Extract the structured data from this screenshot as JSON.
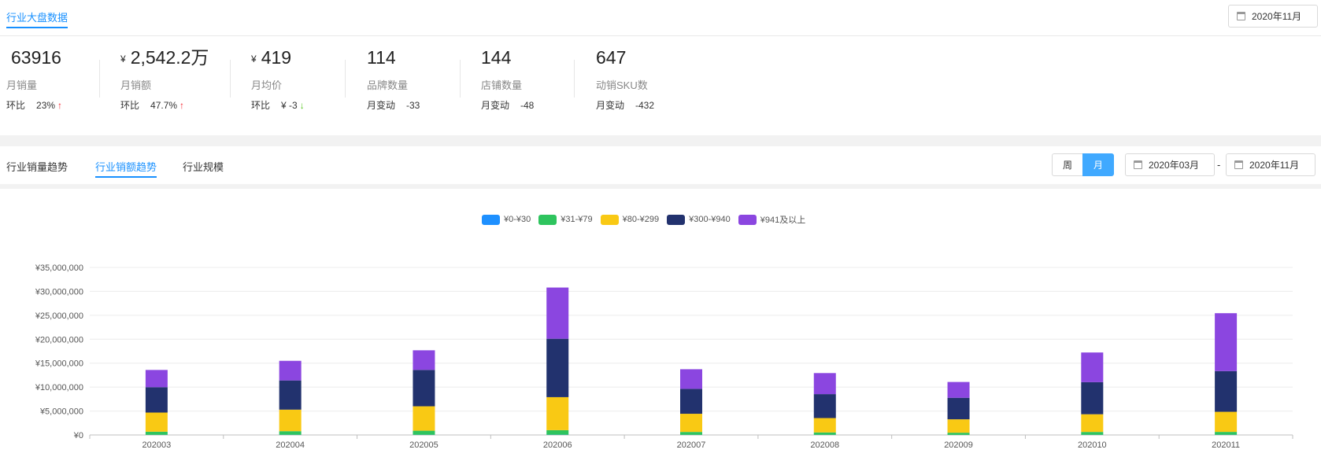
{
  "header": {
    "title": "行业大盘数据",
    "date": "2020年11月"
  },
  "metrics": [
    {
      "value": "63916",
      "currency": "",
      "label": "月销量",
      "delta_label": "环比",
      "delta_value": "23%",
      "arrow": "↑"
    },
    {
      "value": "2,542.2万",
      "currency": "¥",
      "label": "月销额",
      "delta_label": "环比",
      "delta_value": "47.7%",
      "arrow": "↑"
    },
    {
      "value": "419",
      "currency": "¥",
      "label": "月均价",
      "delta_label": "环比",
      "delta_value": "¥ -3",
      "arrow": "↓"
    },
    {
      "value": "114",
      "currency": "",
      "label": "品牌数量",
      "delta_label": "月变动",
      "delta_value": "-33",
      "arrow": ""
    },
    {
      "value": "144",
      "currency": "",
      "label": "店铺数量",
      "delta_label": "月变动",
      "delta_value": "-48",
      "arrow": ""
    },
    {
      "value": "647",
      "currency": "",
      "label": "动销SKU数",
      "delta_label": "月变动",
      "delta_value": "-432",
      "arrow": ""
    }
  ],
  "tabs": [
    {
      "label": "行业销量趋势",
      "active": false
    },
    {
      "label": "行业销额趋势",
      "active": true
    },
    {
      "label": "行业规模",
      "active": false
    }
  ],
  "period_toggle": {
    "week": "周",
    "month": "月",
    "selected": "月"
  },
  "range": {
    "start": "2020年03月",
    "separator": "-",
    "end": "2020年11月"
  },
  "colors": {
    "accent": "#1890ff",
    "up": "#f5222d",
    "down": "#52c41a"
  },
  "chart_data": {
    "type": "bar",
    "stacked": true,
    "legend_position": "top-center",
    "categories": [
      "202003",
      "202004",
      "202005",
      "202006",
      "202007",
      "202008",
      "202009",
      "202010",
      "202011"
    ],
    "ylim": [
      0,
      35000000
    ],
    "yticks": [
      0,
      5000000,
      10000000,
      15000000,
      20000000,
      25000000,
      30000000,
      35000000
    ],
    "ytick_labels": [
      "¥0",
      "¥5,000,000",
      "¥10,000,000",
      "¥15,000,000",
      "¥20,000,000",
      "¥25,000,000",
      "¥30,000,000",
      "¥35,000,000"
    ],
    "series": [
      {
        "name": "¥0-¥30",
        "color": "#1e90ff",
        "values": [
          30000,
          40000,
          40000,
          50000,
          30000,
          30000,
          20000,
          30000,
          40000
        ]
      },
      {
        "name": "¥31-¥79",
        "color": "#2ec45e",
        "values": [
          650000,
          750000,
          850000,
          950000,
          600000,
          500000,
          450000,
          600000,
          600000
        ]
      },
      {
        "name": "¥80-¥299",
        "color": "#f9c914",
        "values": [
          4000000,
          4500000,
          5100000,
          6900000,
          3800000,
          3000000,
          2800000,
          3700000,
          4200000
        ]
      },
      {
        "name": "¥300-¥940",
        "color": "#22326e",
        "values": [
          5300000,
          6100000,
          7600000,
          12200000,
          5200000,
          5000000,
          4500000,
          6700000,
          8500000
        ]
      },
      {
        "name": "¥941及以上",
        "color": "#8b46e0",
        "values": [
          3600000,
          4100000,
          4100000,
          10700000,
          4100000,
          4400000,
          3300000,
          6200000,
          12100000
        ]
      }
    ]
  }
}
